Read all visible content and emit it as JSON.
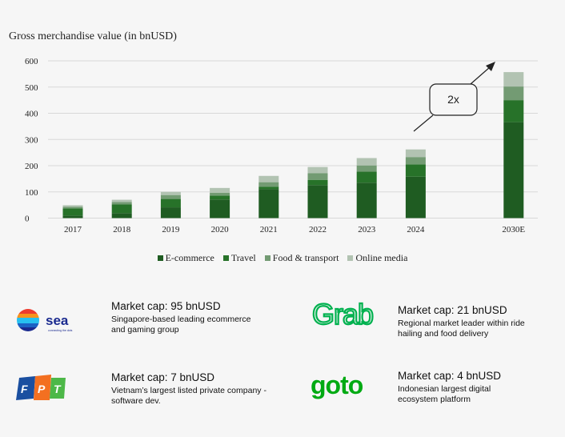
{
  "chart_data": {
    "type": "bar",
    "stacked": true,
    "title": "Gross merchandise value (in bnUSD)",
    "xlabel": "",
    "ylabel": "",
    "ylim": [
      0,
      600
    ],
    "yticks": [
      "0",
      "100",
      "200",
      "300",
      "400",
      "500",
      "600"
    ],
    "categories": [
      "2017",
      "2018",
      "2019",
      "2020",
      "2021",
      "2022",
      "2023",
      "2024",
      "2030E"
    ],
    "series": [
      {
        "name": "E-commerce",
        "color": "#1f5c22",
        "values": [
          10,
          19,
          41,
          71,
          111,
          126,
          135,
          158,
          366
        ]
      },
      {
        "name": "Travel",
        "color": "#277229",
        "values": [
          27,
          33,
          32,
          15,
          9,
          20,
          42,
          47,
          84
        ]
      },
      {
        "name": "Food & transport",
        "color": "#739b73",
        "values": [
          6,
          9,
          15,
          11,
          17,
          25,
          24,
          28,
          52
        ]
      },
      {
        "name": "Online media",
        "color": "#b2c3b2",
        "values": [
          6,
          9,
          12,
          18,
          24,
          24,
          28,
          29,
          55
        ]
      }
    ],
    "legend_position": "bottom",
    "grid": true,
    "annotation": "2x"
  },
  "companies": [
    {
      "logo": "sea",
      "logo_tagline": "connecting the dots",
      "cap": "Market cap: 95 bnUSD",
      "desc": "Singapore-based leading ecommerce and gaming group"
    },
    {
      "logo": "Grab",
      "cap": "Market cap: 21 bnUSD",
      "desc": "Regional market leader within ride hailing and food delivery"
    },
    {
      "logo": "FPT",
      "cap": "Market cap: 7 bnUSD",
      "desc": "Vietnam’s largest listed private company - software dev."
    },
    {
      "logo": "goto",
      "cap": "Market cap: 4 bnUSD",
      "desc": "Indonesian largest digital ecosystem platform"
    }
  ]
}
